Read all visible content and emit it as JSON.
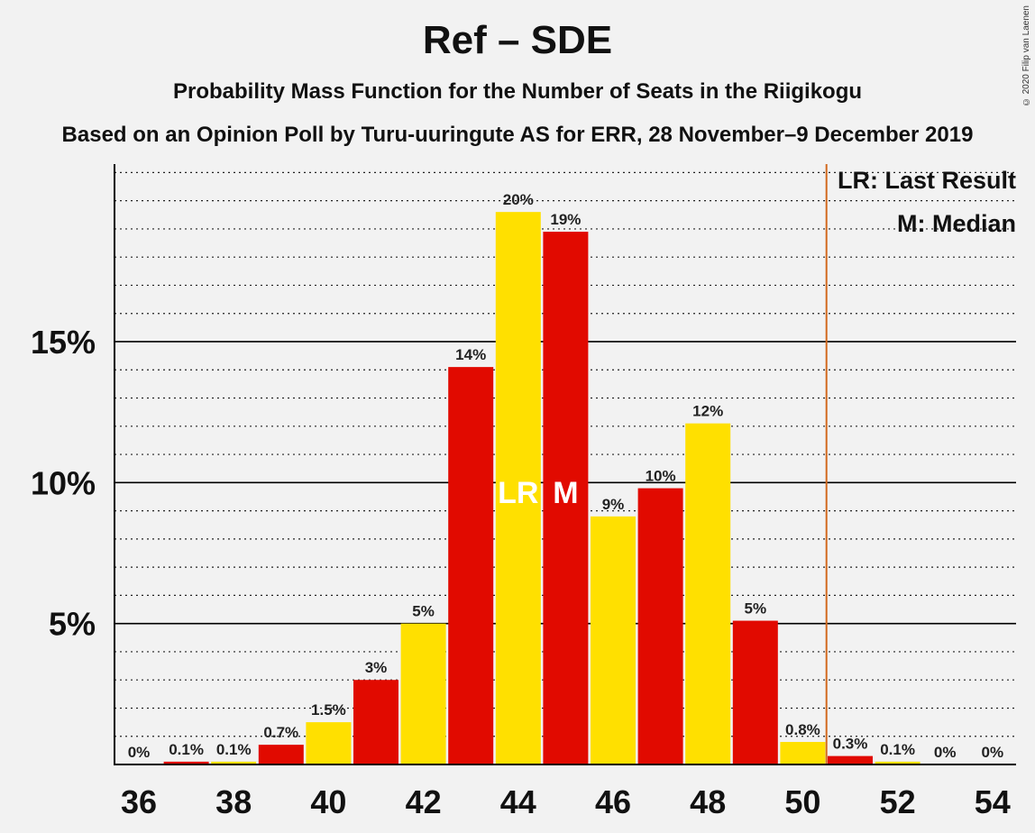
{
  "title": "Ref – SDE",
  "subtitle": "Probability Mass Function for the Number of Seats in the Riigikogu",
  "subtitle2": "Based on an Opinion Poll by Turu-uuringute AS for ERR, 28 November–9 December 2019",
  "copyright": "© 2020 Filip van Laenen",
  "legend": {
    "last_result": "LR: Last Result",
    "median": "M: Median"
  },
  "colors": {
    "red": "#e10a00",
    "yellow": "#ffe000",
    "last_result_line": "#d2691e",
    "background": "#f2f2f2"
  },
  "chart_data": {
    "type": "bar",
    "x": [
      36,
      37,
      38,
      39,
      40,
      41,
      42,
      43,
      44,
      45,
      46,
      47,
      48,
      49,
      50,
      51,
      52,
      53,
      54
    ],
    "values": [
      0,
      0.1,
      0.1,
      0.7,
      1.5,
      3.0,
      5.0,
      14.1,
      19.6,
      18.9,
      8.8,
      9.8,
      12.1,
      5.1,
      0.8,
      0.3,
      0.1,
      0,
      0
    ],
    "labels": [
      "0%",
      "0.1%",
      "0.1%",
      "0.7%",
      "1.5%",
      "3%",
      "5%",
      "14%",
      "20%",
      "19%",
      "9%",
      "10%",
      "12%",
      "5%",
      "0.8%",
      "0.3%",
      "0.1%",
      "0%",
      "0%"
    ],
    "bar_colors": [
      "red",
      "red",
      "yellow",
      "red",
      "yellow",
      "red",
      "yellow",
      "red",
      "yellow",
      "red",
      "yellow",
      "red",
      "yellow",
      "red",
      "yellow",
      "red",
      "yellow",
      "red",
      "yellow"
    ],
    "x_tick_labels": [
      "36",
      "38",
      "40",
      "42",
      "44",
      "46",
      "48",
      "50",
      "52",
      "54"
    ],
    "x_ticks": [
      36,
      38,
      40,
      42,
      44,
      46,
      48,
      50,
      52,
      54
    ],
    "y_tick_labels": [
      "5%",
      "10%",
      "15%"
    ],
    "y_ticks": [
      5,
      10,
      15
    ],
    "ylim": [
      0,
      21.3
    ],
    "minor_grid_step": 1,
    "last_result_seat": 44,
    "last_result_marker": "LR",
    "median_seat": 45,
    "median_marker": "M",
    "last_result_line_x": 50.5
  }
}
